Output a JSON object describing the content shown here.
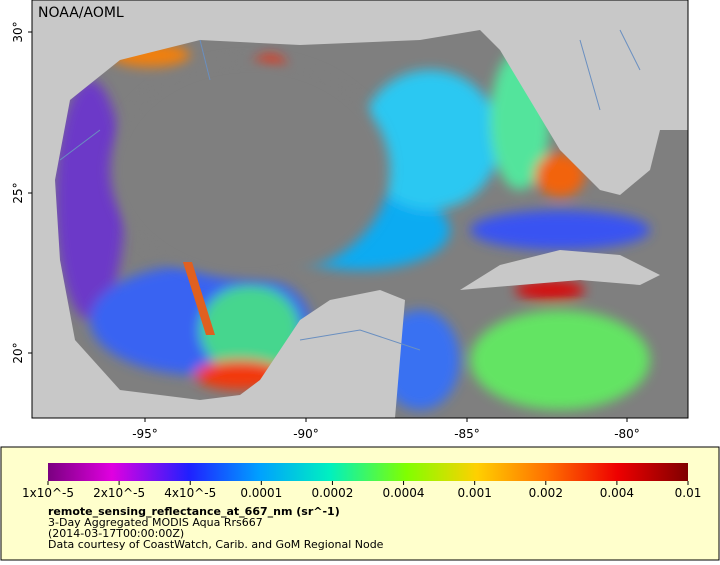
{
  "map": {
    "credit": "NOAA/AOML",
    "lat_labels": [
      "30°",
      "25°",
      "20°"
    ],
    "lon_labels": [
      "-95°",
      "-90°",
      "-85°",
      "-80°"
    ]
  },
  "legend": {
    "scale_labels": [
      "1x10^-5",
      "2x10^-5",
      "4x10^-5",
      "0.0001",
      "0.0002",
      "0.0004",
      "0.001",
      "0.002",
      "0.004",
      "0.01"
    ],
    "title": "remote_sensing_reflectance_at_667_nm (sr^-1)",
    "lines": [
      "3-Day Aggregated MODIS Aqua Rrs667",
      "(2014-03-17T00:00:00Z)",
      "Data courtesy of CoastWatch, Carib. and GoM Regional Node"
    ]
  }
}
